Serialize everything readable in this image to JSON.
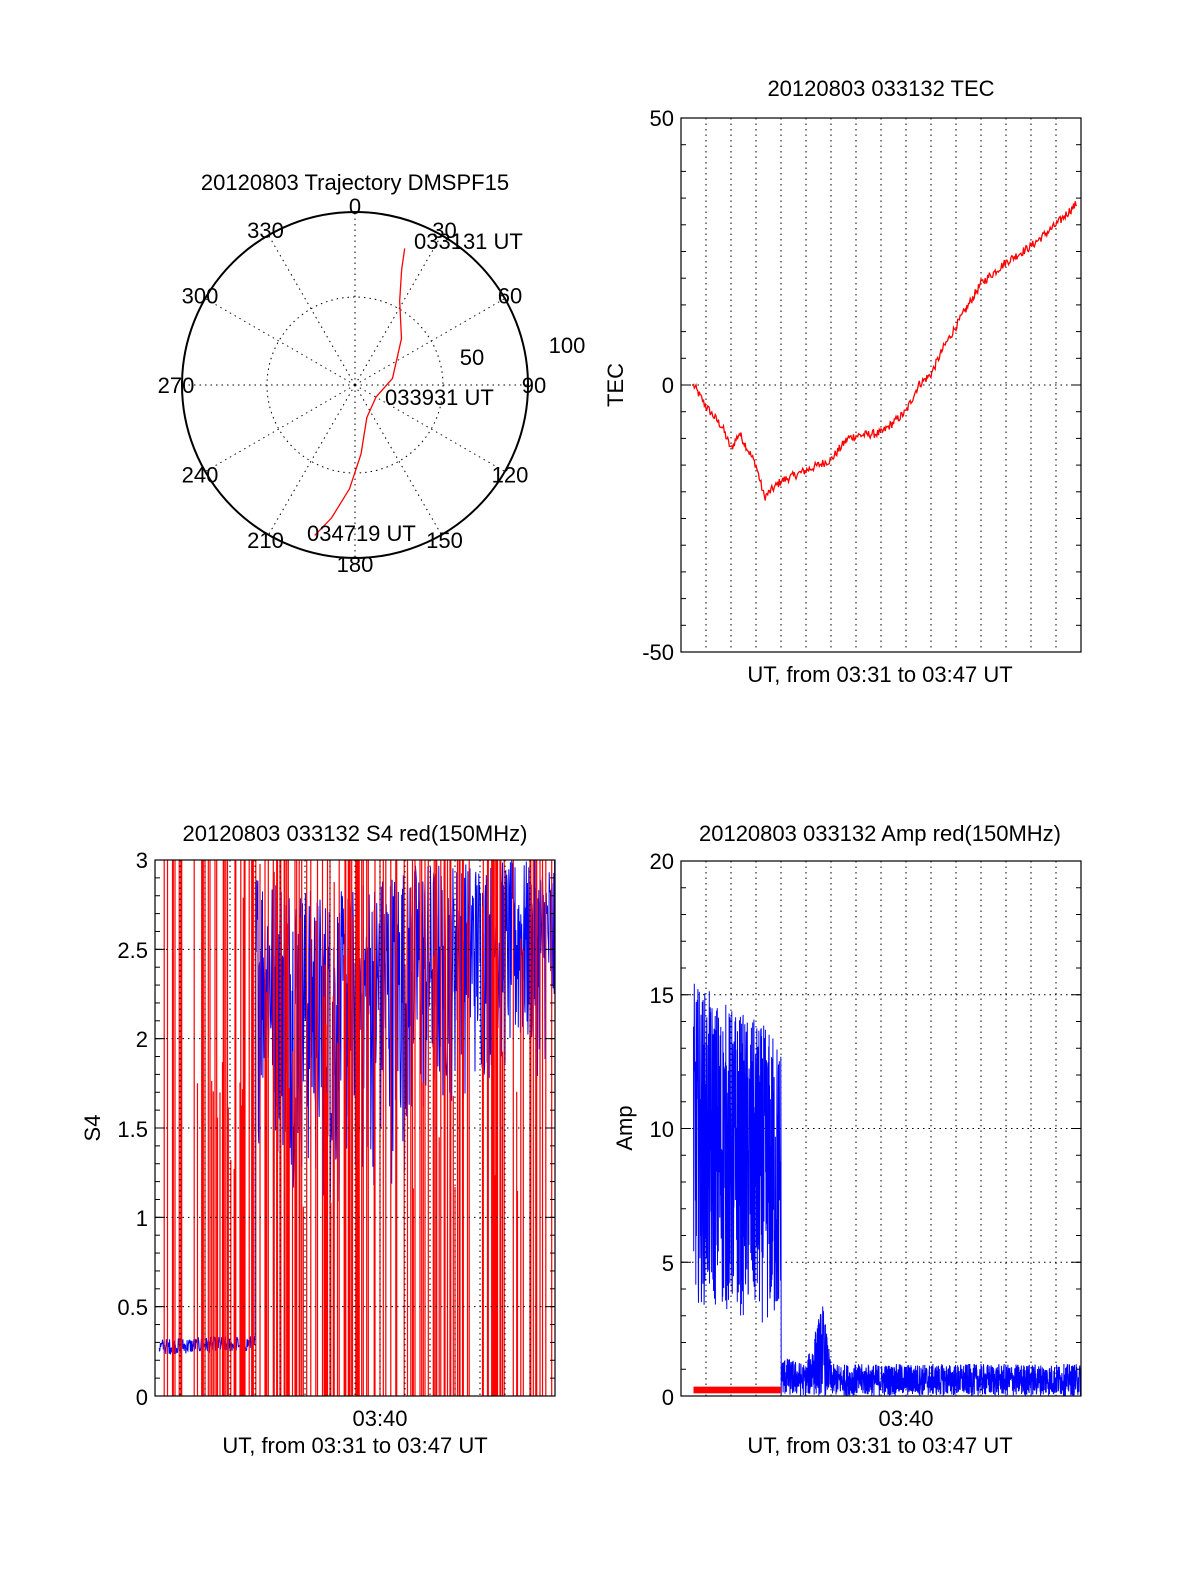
{
  "colors": {
    "red": "#ff0000",
    "blue": "#0000ff",
    "axis": "#000000",
    "background": "#ffffff"
  },
  "chart_data": [
    {
      "type": "polar",
      "title": "20120803 Trajectory DMSPF15",
      "angle_labels": [
        "0",
        "30",
        "60",
        "90",
        "120",
        "150",
        "180",
        "210",
        "240",
        "270",
        "300",
        "330"
      ],
      "radial_labels": [
        "50",
        "100"
      ],
      "track_annotations": [
        {
          "label": "033131 UT",
          "azimuth": 20,
          "zenith": 84
        },
        {
          "label": "033931 UT",
          "azimuth": 100,
          "zenith": 5
        },
        {
          "label": "034719 UT",
          "azimuth": 195,
          "zenith": 90
        }
      ],
      "series": [
        {
          "color": "#ff0000",
          "points": [
            [
              20,
              84
            ],
            [
              22,
              72
            ],
            [
              28,
              55
            ],
            [
              45,
              38
            ],
            [
              80,
              22
            ],
            [
              120,
              14
            ],
            [
              160,
              20
            ],
            [
              175,
              40
            ],
            [
              183,
              60
            ],
            [
              190,
              78
            ],
            [
              195,
              90
            ]
          ]
        }
      ]
    },
    {
      "type": "line",
      "title": "20120803 033132 TEC",
      "xlabel": "UT, from 03:31 to 03:47 UT",
      "ylabel": "TEC",
      "xlim": [
        "03:31",
        "03:47"
      ],
      "ylim": [
        -50,
        50
      ],
      "yticks": [
        "-50",
        "0",
        "50"
      ],
      "grid": true,
      "series": [
        {
          "color": "#ff0000",
          "x": [
            "03:31:30",
            "03:32:00",
            "03:32:40",
            "03:33:00",
            "03:33:20",
            "03:34:00",
            "03:34:20",
            "03:35:00",
            "03:36:00",
            "03:37:00",
            "03:37:40",
            "03:38:00",
            "03:39:00",
            "03:40:00",
            "03:40:30",
            "03:41:00",
            "03:41:30",
            "03:42:00",
            "03:43:00",
            "03:44:00",
            "03:45:00",
            "03:46:00",
            "03:46:50"
          ],
          "y": [
            0,
            -4,
            -8,
            -12,
            -9,
            -15,
            -21,
            -18,
            -16,
            -14,
            -10,
            -9.5,
            -9,
            -5,
            0,
            2,
            7,
            11,
            19,
            23,
            26,
            30,
            34
          ]
        }
      ]
    },
    {
      "type": "line",
      "title": "20120803 033132 S4 red(150MHz)",
      "xlabel": "UT, from 03:31 to 03:47 UT",
      "ylabel": "S4",
      "xlim": [
        "03:31",
        "03:47"
      ],
      "ylim": [
        0,
        3
      ],
      "yticks": [
        "0",
        "0.5",
        "1",
        "1.5",
        "2",
        "2.5",
        "3"
      ],
      "xticks": [
        "03:40"
      ],
      "grid": true,
      "series": [
        {
          "color": "#0000ff",
          "description": "noisy S4 ~0.28 until 03:35:00, then 1.5-3.0, saturating near end",
          "x": [
            "03:31:00",
            "03:35:00",
            "03:35:00",
            "03:38:00",
            "03:41:00",
            "03:43:00",
            "03:45:00",
            "03:47:00"
          ],
          "y_low": [
            0.23,
            0.25,
            1.4,
            0.9,
            1.2,
            1.6,
            1.7,
            1.8
          ],
          "y_high": [
            0.32,
            0.34,
            3.0,
            2.8,
            3.0,
            3.0,
            3.0,
            3.0
          ]
        },
        {
          "color": "#ff0000",
          "description": "spikes of red S4 from 0 to 3 throughout",
          "x": [
            "03:31:00",
            "03:47:00"
          ],
          "y_low": [
            0,
            0
          ],
          "y_high": [
            3,
            3
          ]
        }
      ]
    },
    {
      "type": "line",
      "title": "20120803 033132 Amp red(150MHz)",
      "xlabel": "UT, from 03:31 to 03:47 UT",
      "ylabel": "Amp",
      "xlim": [
        "03:31",
        "03:47"
      ],
      "ylim": [
        0,
        20
      ],
      "yticks": [
        "0",
        "5",
        "10",
        "15",
        "20"
      ],
      "xticks": [
        "03:40"
      ],
      "grid": true,
      "series": [
        {
          "color": "#0000ff",
          "x": [
            "03:31:30",
            "03:35:00",
            "03:35:00",
            "03:36:00",
            "03:36:40",
            "03:37:00",
            "03:47:00"
          ],
          "y_low": [
            3.5,
            2.5,
            0,
            0,
            0,
            0,
            0
          ],
          "y_high": [
            15.5,
            13.5,
            1.5,
            1.2,
            3.5,
            1.2,
            1.2
          ]
        },
        {
          "color": "#ff0000",
          "x": [
            "03:31:30",
            "03:35:00"
          ],
          "y_low": [
            0.1,
            0.1
          ],
          "y_high": [
            0.35,
            0.35
          ]
        }
      ]
    }
  ]
}
